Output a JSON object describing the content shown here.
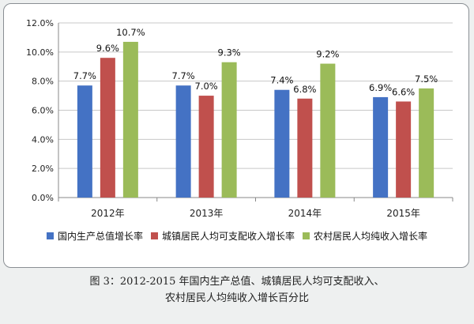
{
  "chart_data": {
    "type": "bar",
    "categories": [
      "2012年",
      "2013年",
      "2014年",
      "2015年"
    ],
    "series": [
      {
        "name": "国内生产总值增长率",
        "color": "#4472c4",
        "values": [
          7.7,
          7.7,
          7.4,
          6.9
        ],
        "labels": [
          "7.7%",
          "7.7%",
          "7.4%",
          "6.9%"
        ]
      },
      {
        "name": "城镇居民人均可支配收入增长率",
        "color": "#c0504d",
        "values": [
          9.6,
          7.0,
          6.8,
          6.6
        ],
        "labels": [
          "9.6%",
          "7.0%",
          "6.8%",
          "6.6%"
        ]
      },
      {
        "name": "农村居民人均纯收入增长率",
        "color": "#9bbb59",
        "values": [
          10.7,
          9.3,
          9.2,
          7.5
        ],
        "labels": [
          "10.7%",
          "9.3%",
          "9.2%",
          "7.5%"
        ]
      }
    ],
    "ylim": [
      0,
      12
    ],
    "yticks": [
      "0.0%",
      "2.0%",
      "4.0%",
      "6.0%",
      "8.0%",
      "10.0%",
      "12.0%"
    ],
    "grid": true,
    "legend_position": "bottom",
    "title": "",
    "xlabel": "",
    "ylabel": ""
  },
  "caption": {
    "line1": "图 3：2012-2015 年国内生产总值、城镇居民人均可支配收入、",
    "line2": "农村居民人均纯收入增长百分比"
  }
}
